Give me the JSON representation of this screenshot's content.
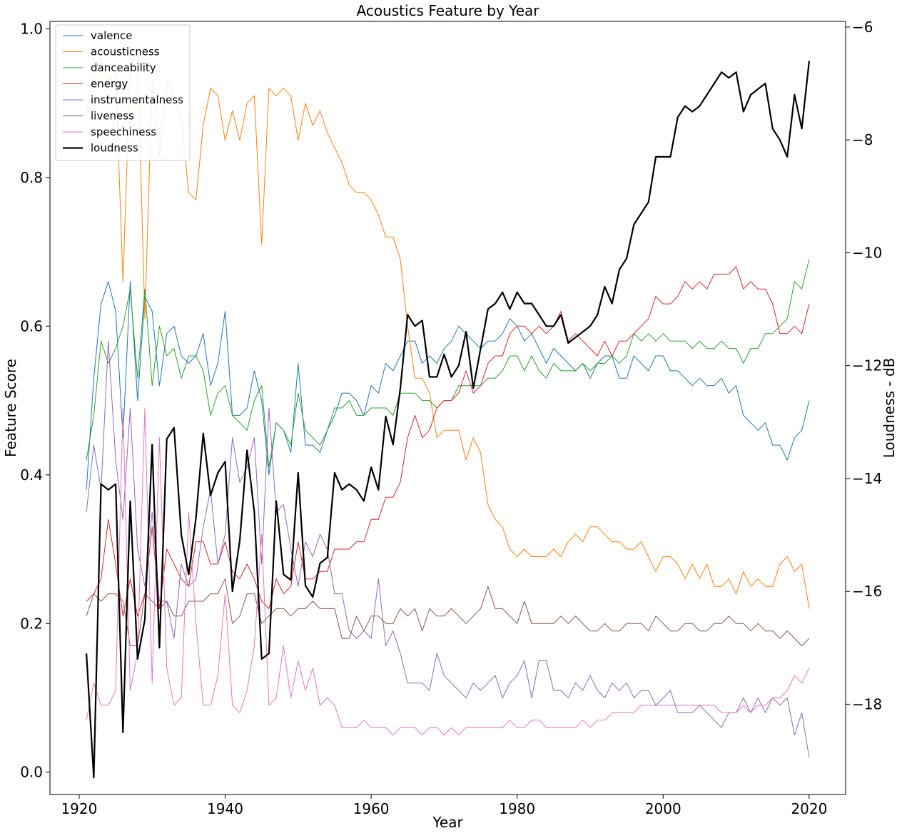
{
  "chart_data": {
    "type": "line",
    "title": "Acoustics Feature by Year",
    "xlabel": "Year",
    "ylabel": "Feature Score",
    "y2label": "Loudness - dB",
    "xlim": [
      1916,
      2025
    ],
    "ylim": [
      -0.03,
      1.01
    ],
    "y2lim": [
      -19.6,
      -5.9
    ],
    "xticks": [
      1920,
      1940,
      1960,
      1980,
      2000,
      2020
    ],
    "yticks": [
      0.0,
      0.2,
      0.4,
      0.6,
      0.8,
      1.0
    ],
    "y2ticks": [
      -18,
      -16,
      -14,
      -12,
      -10,
      -8,
      -6
    ],
    "ytick_labels": [
      "0.0",
      "0.2",
      "0.4",
      "0.6",
      "0.8",
      "1.0"
    ],
    "y2tick_labels": [
      "−18",
      "−16",
      "−14",
      "−12",
      "−10",
      "−8",
      "−6"
    ],
    "legend_position": "upper-left",
    "grid": false,
    "x": [
      1921,
      1922,
      1923,
      1924,
      1925,
      1926,
      1927,
      1928,
      1929,
      1930,
      1931,
      1932,
      1933,
      1934,
      1935,
      1936,
      1937,
      1938,
      1939,
      1940,
      1941,
      1942,
      1943,
      1944,
      1945,
      1946,
      1947,
      1948,
      1949,
      1950,
      1951,
      1952,
      1953,
      1954,
      1955,
      1956,
      1957,
      1958,
      1959,
      1960,
      1961,
      1962,
      1963,
      1964,
      1965,
      1966,
      1967,
      1968,
      1969,
      1970,
      1971,
      1972,
      1973,
      1974,
      1975,
      1976,
      1977,
      1978,
      1979,
      1980,
      1981,
      1982,
      1983,
      1984,
      1985,
      1986,
      1987,
      1988,
      1989,
      1990,
      1991,
      1992,
      1993,
      1994,
      1995,
      1996,
      1997,
      1998,
      1999,
      2000,
      2001,
      2002,
      2003,
      2004,
      2005,
      2006,
      2007,
      2008,
      2009,
      2010,
      2011,
      2012,
      2013,
      2014,
      2015,
      2016,
      2017,
      2018,
      2019,
      2020
    ],
    "series": [
      {
        "name": "valence",
        "axis": "left",
        "color": "#1f77b4",
        "width": 1,
        "values": [
          0.38,
          0.53,
          0.63,
          0.66,
          0.62,
          0.45,
          0.66,
          0.5,
          0.64,
          0.62,
          0.52,
          0.59,
          0.6,
          0.56,
          0.55,
          0.56,
          0.59,
          0.52,
          0.55,
          0.62,
          0.48,
          0.48,
          0.49,
          0.54,
          0.5,
          0.4,
          0.47,
          0.46,
          0.43,
          0.55,
          0.44,
          0.44,
          0.43,
          0.46,
          0.48,
          0.51,
          0.51,
          0.5,
          0.48,
          0.52,
          0.51,
          0.55,
          0.54,
          0.56,
          0.58,
          0.58,
          0.55,
          0.56,
          0.55,
          0.57,
          0.58,
          0.6,
          0.59,
          0.58,
          0.57,
          0.58,
          0.58,
          0.59,
          0.61,
          0.6,
          0.58,
          0.59,
          0.57,
          0.55,
          0.57,
          0.56,
          0.55,
          0.54,
          0.55,
          0.53,
          0.55,
          0.56,
          0.56,
          0.53,
          0.53,
          0.56,
          0.55,
          0.54,
          0.56,
          0.56,
          0.54,
          0.54,
          0.53,
          0.52,
          0.53,
          0.52,
          0.52,
          0.53,
          0.51,
          0.52,
          0.48,
          0.47,
          0.46,
          0.47,
          0.44,
          0.44,
          0.42,
          0.45,
          0.46,
          0.5
        ]
      },
      {
        "name": "acousticness",
        "axis": "left",
        "color": "#ff7f0e",
        "width": 1,
        "values": [
          0.89,
          0.94,
          0.96,
          0.93,
          0.94,
          0.66,
          0.95,
          0.97,
          0.61,
          0.93,
          0.83,
          0.93,
          0.91,
          0.88,
          0.78,
          0.77,
          0.87,
          0.92,
          0.91,
          0.85,
          0.89,
          0.85,
          0.9,
          0.91,
          0.71,
          0.92,
          0.91,
          0.92,
          0.91,
          0.85,
          0.9,
          0.87,
          0.89,
          0.86,
          0.84,
          0.82,
          0.79,
          0.78,
          0.78,
          0.77,
          0.75,
          0.72,
          0.72,
          0.69,
          0.6,
          0.53,
          0.53,
          0.51,
          0.45,
          0.46,
          0.46,
          0.46,
          0.42,
          0.45,
          0.43,
          0.36,
          0.34,
          0.33,
          0.3,
          0.29,
          0.3,
          0.29,
          0.29,
          0.29,
          0.3,
          0.29,
          0.31,
          0.32,
          0.31,
          0.33,
          0.33,
          0.32,
          0.31,
          0.31,
          0.3,
          0.3,
          0.31,
          0.29,
          0.27,
          0.29,
          0.29,
          0.28,
          0.26,
          0.28,
          0.26,
          0.28,
          0.25,
          0.25,
          0.26,
          0.24,
          0.27,
          0.25,
          0.26,
          0.25,
          0.25,
          0.28,
          0.29,
          0.27,
          0.28,
          0.22
        ]
      },
      {
        "name": "danceability",
        "axis": "left",
        "color": "#2ca02c",
        "width": 1,
        "values": [
          0.42,
          0.48,
          0.58,
          0.55,
          0.57,
          0.6,
          0.65,
          0.53,
          0.65,
          0.52,
          0.6,
          0.56,
          0.57,
          0.53,
          0.56,
          0.56,
          0.54,
          0.48,
          0.51,
          0.52,
          0.48,
          0.47,
          0.46,
          0.5,
          0.52,
          0.41,
          0.47,
          0.46,
          0.44,
          0.51,
          0.46,
          0.45,
          0.44,
          0.46,
          0.49,
          0.49,
          0.5,
          0.48,
          0.48,
          0.49,
          0.49,
          0.49,
          0.48,
          0.51,
          0.51,
          0.51,
          0.5,
          0.5,
          0.49,
          0.5,
          0.5,
          0.52,
          0.52,
          0.52,
          0.52,
          0.53,
          0.53,
          0.54,
          0.56,
          0.56,
          0.54,
          0.56,
          0.54,
          0.53,
          0.55,
          0.54,
          0.54,
          0.54,
          0.55,
          0.54,
          0.55,
          0.55,
          0.56,
          0.55,
          0.56,
          0.59,
          0.58,
          0.59,
          0.58,
          0.59,
          0.58,
          0.58,
          0.58,
          0.57,
          0.58,
          0.57,
          0.57,
          0.58,
          0.57,
          0.57,
          0.55,
          0.57,
          0.57,
          0.59,
          0.59,
          0.6,
          0.61,
          0.66,
          0.65,
          0.69
        ]
      },
      {
        "name": "energy",
        "axis": "left",
        "color": "#d62728",
        "width": 1,
        "values": [
          0.23,
          0.24,
          0.26,
          0.34,
          0.28,
          0.21,
          0.26,
          0.21,
          0.24,
          0.33,
          0.22,
          0.3,
          0.28,
          0.26,
          0.25,
          0.31,
          0.31,
          0.28,
          0.28,
          0.31,
          0.27,
          0.26,
          0.28,
          0.26,
          0.23,
          0.22,
          0.26,
          0.24,
          0.25,
          0.31,
          0.26,
          0.26,
          0.27,
          0.27,
          0.3,
          0.3,
          0.3,
          0.31,
          0.31,
          0.34,
          0.34,
          0.37,
          0.37,
          0.39,
          0.45,
          0.48,
          0.45,
          0.46,
          0.49,
          0.5,
          0.5,
          0.51,
          0.54,
          0.51,
          0.52,
          0.55,
          0.56,
          0.56,
          0.59,
          0.6,
          0.6,
          0.59,
          0.6,
          0.59,
          0.6,
          0.62,
          0.58,
          0.59,
          0.58,
          0.57,
          0.56,
          0.58,
          0.56,
          0.58,
          0.58,
          0.59,
          0.6,
          0.61,
          0.64,
          0.63,
          0.63,
          0.64,
          0.66,
          0.65,
          0.66,
          0.65,
          0.67,
          0.67,
          0.67,
          0.68,
          0.65,
          0.66,
          0.65,
          0.65,
          0.63,
          0.59,
          0.59,
          0.6,
          0.59,
          0.63
        ]
      },
      {
        "name": "instrumentalness",
        "axis": "left",
        "color": "#9467bd",
        "width": 1,
        "values": [
          0.35,
          0.44,
          0.38,
          0.58,
          0.42,
          0.34,
          0.49,
          0.3,
          0.25,
          0.35,
          0.23,
          0.23,
          0.18,
          0.28,
          0.25,
          0.26,
          0.33,
          0.38,
          0.28,
          0.32,
          0.45,
          0.39,
          0.41,
          0.45,
          0.28,
          0.49,
          0.35,
          0.36,
          0.3,
          0.25,
          0.31,
          0.29,
          0.32,
          0.3,
          0.24,
          0.24,
          0.19,
          0.18,
          0.19,
          0.18,
          0.26,
          0.17,
          0.19,
          0.16,
          0.12,
          0.12,
          0.12,
          0.11,
          0.16,
          0.13,
          0.12,
          0.11,
          0.1,
          0.12,
          0.11,
          0.12,
          0.13,
          0.1,
          0.12,
          0.13,
          0.15,
          0.1,
          0.15,
          0.15,
          0.11,
          0.11,
          0.1,
          0.12,
          0.11,
          0.13,
          0.11,
          0.1,
          0.12,
          0.11,
          0.12,
          0.1,
          0.11,
          0.11,
          0.09,
          0.1,
          0.11,
          0.08,
          0.08,
          0.08,
          0.09,
          0.08,
          0.07,
          0.06,
          0.08,
          0.08,
          0.1,
          0.08,
          0.1,
          0.08,
          0.1,
          0.09,
          0.1,
          0.05,
          0.08,
          0.02
        ]
      },
      {
        "name": "liveness",
        "axis": "left",
        "color": "#8c564b",
        "width": 1,
        "values": [
          0.21,
          0.24,
          0.23,
          0.24,
          0.24,
          0.23,
          0.17,
          0.17,
          0.24,
          0.23,
          0.22,
          0.23,
          0.21,
          0.21,
          0.23,
          0.23,
          0.23,
          0.24,
          0.24,
          0.26,
          0.2,
          0.21,
          0.24,
          0.24,
          0.2,
          0.21,
          0.22,
          0.22,
          0.21,
          0.22,
          0.22,
          0.23,
          0.22,
          0.22,
          0.22,
          0.18,
          0.18,
          0.21,
          0.19,
          0.21,
          0.21,
          0.2,
          0.2,
          0.22,
          0.21,
          0.22,
          0.19,
          0.22,
          0.21,
          0.21,
          0.22,
          0.21,
          0.2,
          0.21,
          0.22,
          0.25,
          0.22,
          0.22,
          0.21,
          0.2,
          0.23,
          0.2,
          0.2,
          0.2,
          0.2,
          0.21,
          0.2,
          0.21,
          0.2,
          0.19,
          0.19,
          0.2,
          0.19,
          0.19,
          0.2,
          0.2,
          0.2,
          0.19,
          0.21,
          0.2,
          0.19,
          0.19,
          0.2,
          0.2,
          0.19,
          0.19,
          0.2,
          0.2,
          0.21,
          0.2,
          0.2,
          0.19,
          0.2,
          0.19,
          0.19,
          0.18,
          0.19,
          0.18,
          0.17,
          0.18
        ]
      },
      {
        "name": "speechiness",
        "axis": "left",
        "color": "#e377c2",
        "width": 1,
        "values": [
          0.07,
          0.12,
          0.09,
          0.09,
          0.11,
          0.49,
          0.11,
          0.16,
          0.49,
          0.12,
          0.45,
          0.14,
          0.09,
          0.1,
          0.35,
          0.2,
          0.09,
          0.09,
          0.13,
          0.24,
          0.09,
          0.08,
          0.11,
          0.17,
          0.32,
          0.09,
          0.1,
          0.17,
          0.1,
          0.15,
          0.11,
          0.14,
          0.09,
          0.1,
          0.09,
          0.06,
          0.06,
          0.06,
          0.07,
          0.06,
          0.06,
          0.06,
          0.05,
          0.06,
          0.06,
          0.06,
          0.05,
          0.06,
          0.06,
          0.05,
          0.06,
          0.05,
          0.06,
          0.06,
          0.06,
          0.06,
          0.06,
          0.06,
          0.07,
          0.06,
          0.06,
          0.07,
          0.07,
          0.06,
          0.06,
          0.06,
          0.06,
          0.06,
          0.07,
          0.06,
          0.07,
          0.07,
          0.08,
          0.08,
          0.08,
          0.08,
          0.09,
          0.09,
          0.09,
          0.09,
          0.09,
          0.09,
          0.09,
          0.09,
          0.09,
          0.09,
          0.09,
          0.08,
          0.08,
          0.08,
          0.09,
          0.08,
          0.09,
          0.09,
          0.1,
          0.1,
          0.11,
          0.13,
          0.12,
          0.14
        ]
      },
      {
        "name": "loudness",
        "axis": "right",
        "color": "#000000",
        "width": 2.2,
        "values": [
          -17.1,
          -19.3,
          -14.1,
          -14.2,
          -14.1,
          -18.5,
          -14.4,
          -17.2,
          -16.5,
          -13.4,
          -17.0,
          -13.3,
          -13.1,
          -15.0,
          -15.7,
          -14.7,
          -13.2,
          -14.3,
          -13.9,
          -13.7,
          -16.0,
          -15.1,
          -13.5,
          -14.6,
          -17.2,
          -17.1,
          -14.4,
          -15.7,
          -15.8,
          -13.9,
          -15.9,
          -16.1,
          -15.5,
          -15.4,
          -13.9,
          -14.2,
          -14.1,
          -14.2,
          -14.4,
          -13.8,
          -14.2,
          -12.9,
          -13.4,
          -12.4,
          -11.1,
          -11.3,
          -11.2,
          -12.2,
          -12.2,
          -11.8,
          -12.2,
          -12.0,
          -11.4,
          -12.4,
          -11.7,
          -11.0,
          -10.9,
          -10.7,
          -11.0,
          -10.7,
          -10.9,
          -10.9,
          -11.1,
          -11.3,
          -11.3,
          -11.1,
          -11.6,
          -11.5,
          -11.4,
          -11.3,
          -11.1,
          -10.6,
          -10.9,
          -10.3,
          -10.1,
          -9.5,
          -9.3,
          -9.1,
          -8.3,
          -8.3,
          -8.3,
          -7.6,
          -7.4,
          -7.5,
          -7.4,
          -7.2,
          -7.0,
          -6.8,
          -6.9,
          -6.8,
          -7.5,
          -7.2,
          -7.1,
          -7.0,
          -7.8,
          -8.0,
          -8.3,
          -7.2,
          -7.8,
          -6.6
        ]
      }
    ]
  }
}
